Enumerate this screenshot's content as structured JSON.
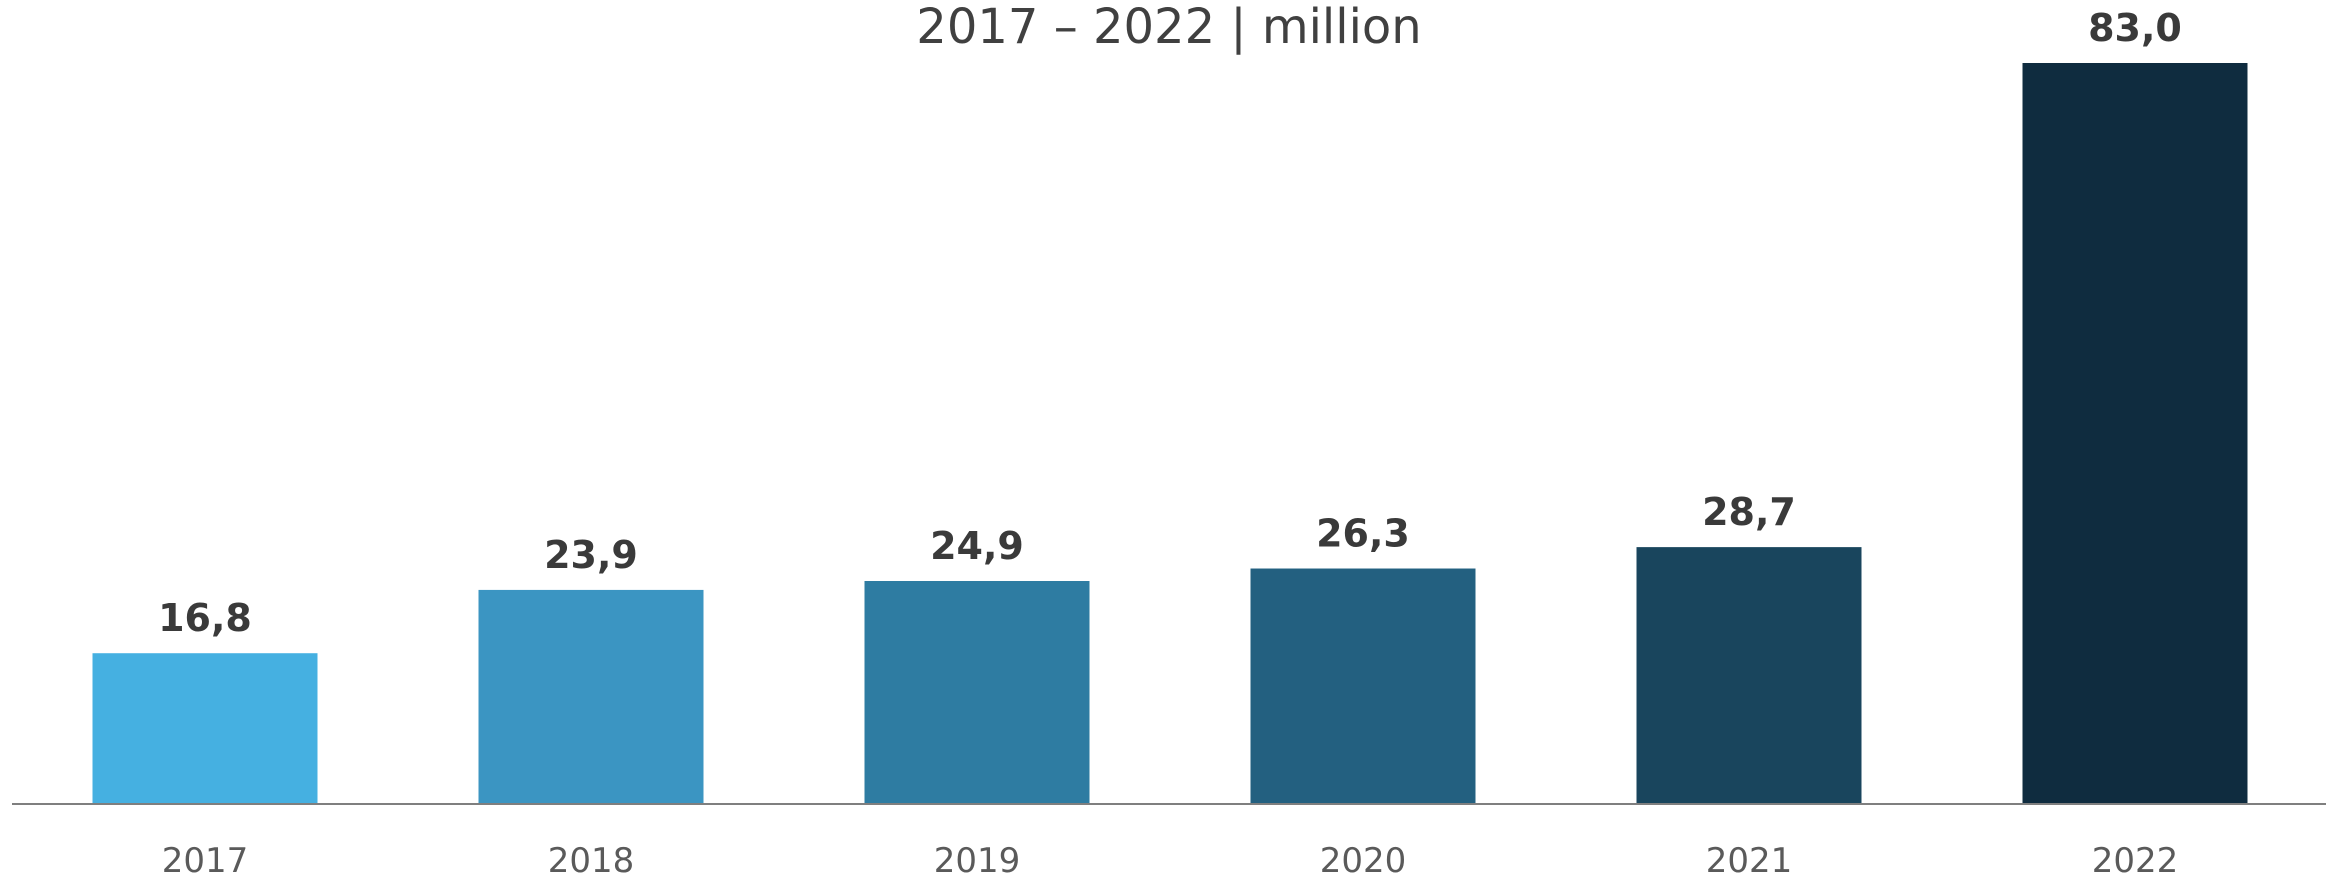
{
  "chart_data": {
    "type": "bar",
    "title": "2017 – 2022  | million",
    "categories": [
      "2017",
      "2018",
      "2019",
      "2020",
      "2021",
      "2022"
    ],
    "values": [
      16.8,
      23.9,
      24.9,
      26.3,
      28.7,
      83.0
    ],
    "value_labels": [
      "16,8",
      "23,9",
      "24,9",
      "26,3",
      "28,7",
      "83,0"
    ],
    "bar_colors": [
      "#45b0e1",
      "#3b95c2",
      "#2e7ca2",
      "#236080",
      "#19455d",
      "#0f2c3f"
    ],
    "axis_color": "#7f7f7f",
    "ylim": [
      0,
      83.0
    ],
    "grid": false,
    "legend": "none",
    "xlabel": "",
    "ylabel": ""
  }
}
